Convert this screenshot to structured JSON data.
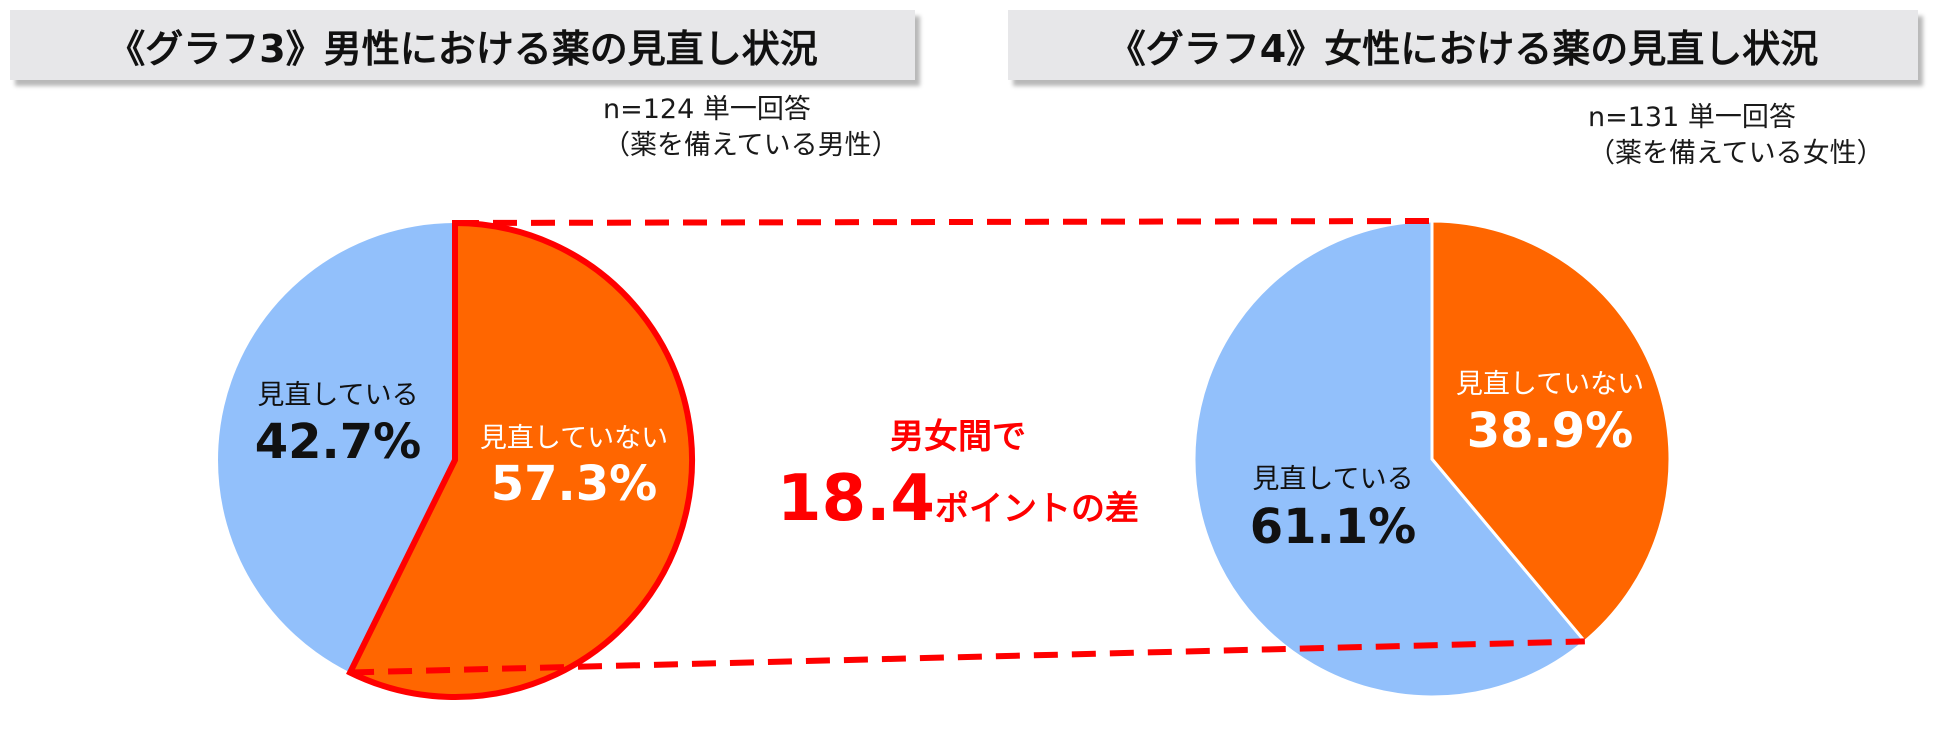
{
  "colors": {
    "not_reviewed": "#ff6600",
    "reviewed": "#92c0fb",
    "highlight": "#ff0000",
    "title_bg": "#e7e7e9"
  },
  "chart_data": [
    {
      "type": "pie",
      "title": "《グラフ3》男性における薬の見直し状況",
      "sample": "n=124 単一回答",
      "population": "（薬を備えている男性）",
      "slices": [
        {
          "label": "見直していない",
          "value": 57.3,
          "value_label": "57.3%"
        },
        {
          "label": "見直している",
          "value": 42.7,
          "value_label": "42.7%"
        }
      ]
    },
    {
      "type": "pie",
      "title": "《グラフ4》女性における薬の見直し状況",
      "sample": "n=131 単一回答",
      "population": "（薬を備えている女性）",
      "slices": [
        {
          "label": "見直していない",
          "value": 38.9,
          "value_label": "38.9%"
        },
        {
          "label": "見直している",
          "value": 61.1,
          "value_label": "61.1%"
        }
      ]
    }
  ],
  "comparison": {
    "line1": "男女間で",
    "number": "18.4",
    "unit": "ポイントの差"
  }
}
